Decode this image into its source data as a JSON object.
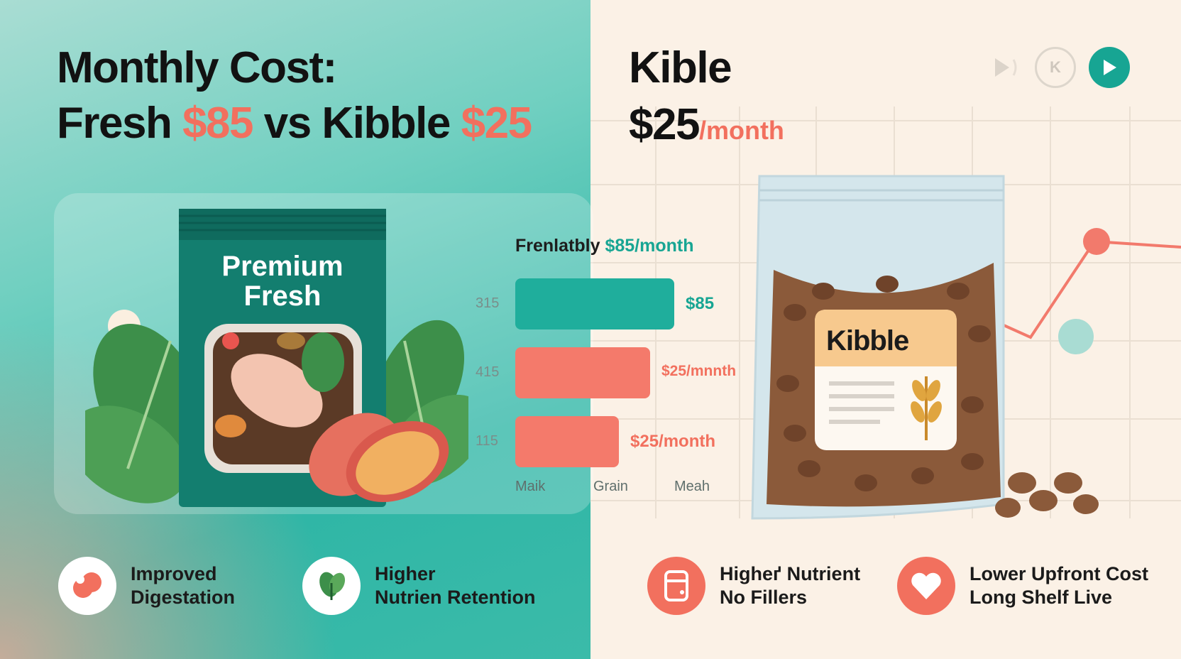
{
  "header": {
    "title_line1": "Monthly Cost:",
    "title_line2_a": "Fresh ",
    "title_line2_fresh_price": "$85",
    "title_line2_b": " vs Kibble ",
    "title_line2_kibble_price": "$25"
  },
  "kibble_header": {
    "title": "Kible",
    "price": "$25",
    "unit": "/month"
  },
  "media_controls": {
    "icons": [
      "skip-icon",
      "k-icon",
      "play-icon"
    ],
    "k_label": "K"
  },
  "fresh_pack": {
    "label_line1": "Premium",
    "label_line2": "Fresh"
  },
  "kibble_pack": {
    "label": "Kibble"
  },
  "chart_data": {
    "type": "bar",
    "orientation": "horizontal",
    "title": "Frenlatbly",
    "title_value": "$85/month",
    "categories": [
      "Maik",
      "Grain",
      "Meah"
    ],
    "y_ticks": [
      "315",
      "415",
      "115"
    ],
    "values": [
      85,
      25,
      25
    ],
    "data_labels": [
      "$85",
      "$25/mnnth",
      "$25/month"
    ],
    "colors": [
      "#1fae9c",
      "#f47a6b",
      "#f47a6b"
    ],
    "xlim": [
      0,
      100
    ]
  },
  "features": [
    {
      "icon": "heart-organ-icon",
      "line1": "Improved",
      "line2": "Digestation"
    },
    {
      "icon": "leaf-icon",
      "line1": "Higher",
      "line2": "Nutrien Retention"
    },
    {
      "icon": "container-icon",
      "line1": "Higheґ Nutrient",
      "line2": "No Fillers"
    },
    {
      "icon": "heart-icon",
      "line1": "Lower Upfront Cost",
      "line2": "Long Shelf Live"
    }
  ],
  "colors": {
    "teal": "#17a593",
    "coral": "#f2705e",
    "cream": "#fbf1e6"
  }
}
